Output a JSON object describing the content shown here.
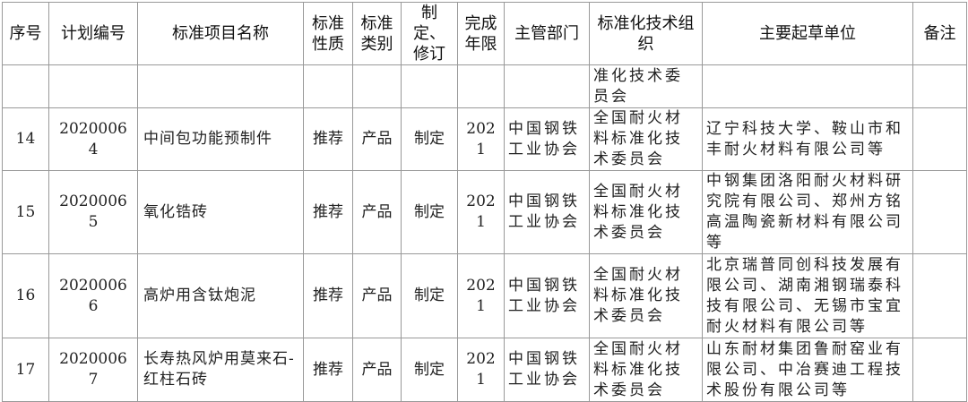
{
  "headers": [
    "序号",
    "计划编号",
    "标准项目名称",
    "标准性质",
    "标准类别",
    "制定、修订",
    "完成年限",
    "主管部门",
    "标准化技术组织",
    "主要起草单位",
    "备注"
  ],
  "continuation": {
    "org": "准化技术委员会"
  },
  "rows": [
    {
      "no": "14",
      "code": "20200064",
      "name": "中间包功能预制件",
      "nature": "推荐",
      "category": "产品",
      "type": "制定",
      "year": "2021",
      "dept": "中国钢铁工业协会",
      "org": "全国耐火材料标准化技术委员会",
      "drafter": "辽宁科技大学、鞍山市和丰耐火材料有限公司等",
      "note": ""
    },
    {
      "no": "15",
      "code": "20200065",
      "name": "氧化锆砖",
      "nature": "推荐",
      "category": "产品",
      "type": "制定",
      "year": "2021",
      "dept": "中国钢铁工业协会",
      "org": "全国耐火材料标准化技术委员会",
      "drafter": "中钢集团洛阳耐火材料研究院有限公司、郑州方铭高温陶瓷新材料有限公司等",
      "note": ""
    },
    {
      "no": "16",
      "code": "20200066",
      "name": "高炉用含钛炮泥",
      "nature": "推荐",
      "category": "产品",
      "type": "制定",
      "year": "2021",
      "dept": "中国钢铁工业协会",
      "org": "全国耐火材料标准化技术委员会",
      "drafter": "北京瑞普同创科技发展有限公司、湖南湘钢瑞泰科技有限公司、无锡市宝宜耐火材料有限公司等",
      "note": ""
    },
    {
      "no": "17",
      "code": "20200067",
      "name": "长寿热风炉用莫来石-红柱石砖",
      "nature": "推荐",
      "category": "产品",
      "type": "制定",
      "year": "2021",
      "dept": "中国钢铁工业协会",
      "org": "全国耐火材料标准化技术委员会",
      "drafter": "山东耐材集团鲁耐窑业有限公司、中冶赛迪工程技术股份有限公司等",
      "note": ""
    }
  ]
}
